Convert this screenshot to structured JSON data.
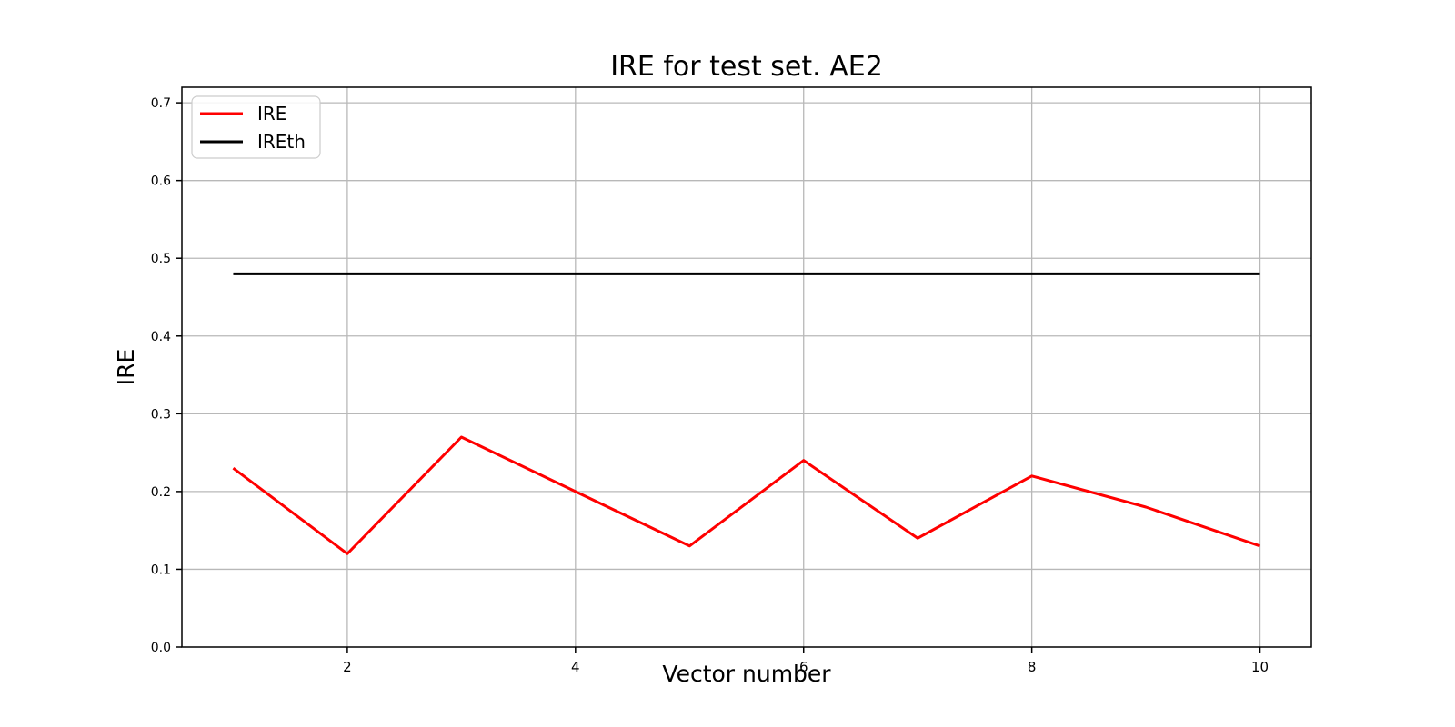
{
  "figure": {
    "title": "IRE for test set. AE2",
    "xlabel": "Vector number",
    "ylabel": "IRE"
  },
  "legend": {
    "items": [
      {
        "label": "IRE",
        "color": "#ff0000"
      },
      {
        "label": "IREth",
        "color": "#000000"
      }
    ]
  },
  "chart_data": {
    "type": "line",
    "title": "IRE for test set. AE2",
    "xlabel": "Vector number",
    "ylabel": "IRE",
    "x": [
      1,
      2,
      3,
      4,
      5,
      6,
      7,
      8,
      9,
      10
    ],
    "series": [
      {
        "name": "IRE",
        "color": "#ff0000",
        "values": [
          0.23,
          0.12,
          0.27,
          0.2,
          0.13,
          0.24,
          0.14,
          0.22,
          0.18,
          0.13
        ]
      },
      {
        "name": "IREth",
        "color": "#000000",
        "values": [
          0.48,
          0.48,
          0.48,
          0.48,
          0.48,
          0.48,
          0.48,
          0.48,
          0.48,
          0.48
        ]
      }
    ],
    "xlim": [
      0.55,
      10.45
    ],
    "ylim": [
      0.0,
      0.72
    ],
    "xticks": [
      2,
      4,
      6,
      8,
      10
    ],
    "yticks": [
      0.0,
      0.1,
      0.2,
      0.3,
      0.4,
      0.5,
      0.6,
      0.7
    ],
    "grid": true,
    "legend_position": "upper left",
    "colors": {
      "grid": "#b8b8b8",
      "spine": "#000000",
      "background": "#ffffff"
    }
  }
}
